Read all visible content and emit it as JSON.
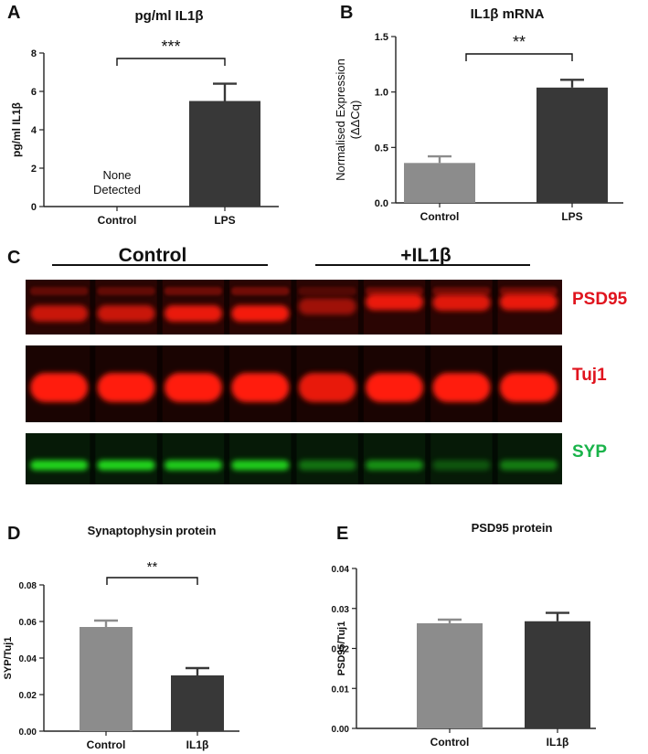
{
  "panel_letters": [
    "A",
    "B",
    "C",
    "D",
    "E"
  ],
  "colors": {
    "bar_light": "#8c8c8c",
    "bar_dark": "#383838",
    "psd95_label": "#e0141e",
    "tuj1_label": "#e0141e",
    "syp_label": "#19b34a",
    "blot_red": "#ff1a10",
    "blot_green": "#22e01a"
  },
  "chart_data": [
    {
      "panel": "A",
      "type": "bar",
      "title": "pg/ml IL1β",
      "xlabel": "",
      "ylabel": "pg/ml IL1β",
      "categories": [
        "Control",
        "LPS"
      ],
      "values": [
        null,
        5.5
      ],
      "errors": [
        null,
        0.9
      ],
      "ylim": [
        0,
        8
      ],
      "yticks": [
        "0",
        "2",
        "4",
        "6",
        "8"
      ],
      "annotations": [
        "None",
        "Detected"
      ],
      "significance": "***"
    },
    {
      "panel": "B",
      "type": "bar",
      "title": "IL1β mRNA",
      "xlabel": "",
      "ylabel": "Normalised Expression",
      "ylabel2": "(ΔΔCq)",
      "categories": [
        "Control",
        "LPS"
      ],
      "values": [
        0.36,
        1.04
      ],
      "errors": [
        0.06,
        0.07
      ],
      "ylim": [
        0,
        1.5
      ],
      "yticks": [
        "0.0",
        "0.5",
        "1.0",
        "1.5"
      ],
      "significance": "**"
    },
    {
      "panel": "D",
      "type": "bar",
      "title": "Synaptophysin protein",
      "xlabel": "",
      "ylabel": "SYP/Tuj1",
      "categories": [
        "Control",
        "IL1β"
      ],
      "values": [
        0.057,
        0.0305
      ],
      "errors": [
        0.0035,
        0.004
      ],
      "ylim": [
        0,
        0.08
      ],
      "yticks": [
        "0.00",
        "0.02",
        "0.04",
        "0.06",
        "0.08"
      ],
      "significance": "**"
    },
    {
      "panel": "E",
      "type": "bar",
      "title": "PSD95 protein",
      "xlabel": "",
      "ylabel": "PSD95/Tuj1",
      "categories": [
        "Control",
        "IL1β"
      ],
      "values": [
        0.0263,
        0.0268
      ],
      "errors": [
        0.0009,
        0.0021
      ],
      "ylim": [
        0,
        0.04
      ],
      "yticks": [
        "0.00",
        "0.01",
        "0.02",
        "0.03",
        "0.04"
      ]
    }
  ],
  "western_blot": {
    "groups": [
      "Control",
      "+IL1β"
    ],
    "lanes_per_group": 4,
    "bands": [
      {
        "label": "PSD95",
        "intensity": [
          0.75,
          0.75,
          0.9,
          0.95,
          0.55,
          0.9,
          0.85,
          0.9
        ]
      },
      {
        "label": "Tuj1",
        "intensity": [
          1.0,
          1.0,
          1.0,
          1.0,
          0.9,
          1.0,
          1.0,
          1.0
        ]
      },
      {
        "label": "SYP",
        "intensity": [
          0.95,
          0.95,
          0.9,
          0.9,
          0.45,
          0.6,
          0.3,
          0.5
        ]
      }
    ]
  }
}
